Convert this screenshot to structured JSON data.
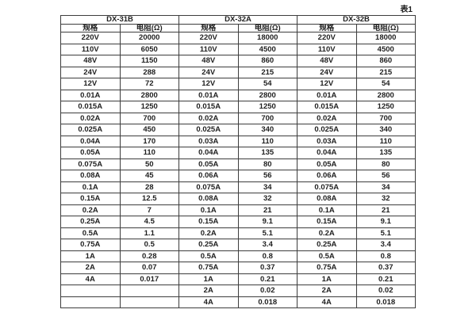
{
  "page": {
    "table_label": "表1"
  },
  "table": {
    "groups": [
      {
        "name": "DX-31B",
        "spec_header": "规格",
        "res_header": "电阻(Ω)"
      },
      {
        "name": "DX-32A",
        "spec_header": "规格",
        "res_header": "电阻(Ω)"
      },
      {
        "name": "DX-32B",
        "spec_header": "规格",
        "res_header": "电阻(Ω)"
      }
    ],
    "rows": [
      [
        "220V",
        "20000",
        "220V",
        "18000",
        "220V",
        "18000"
      ],
      [
        "110V",
        "6050",
        "110V",
        "4500",
        "110V",
        "4500"
      ],
      [
        "48V",
        "1150",
        "48V",
        "860",
        "48V",
        "860"
      ],
      [
        "24V",
        "288",
        "24V",
        "215",
        "24V",
        "215"
      ],
      [
        "12V",
        "72",
        "12V",
        "54",
        "12V",
        "54"
      ],
      [
        "0.01A",
        "2800",
        "0.01A",
        "2800",
        "0.01A",
        "2800"
      ],
      [
        "0.015A",
        "1250",
        "0.015A",
        "1250",
        "0.015A",
        "1250"
      ],
      [
        "0.02A",
        "700",
        "0.02A",
        "700",
        "0.02A",
        "700"
      ],
      [
        "0.025A",
        "450",
        "0.025A",
        "340",
        "0.025A",
        "340"
      ],
      [
        "0.04A",
        "170",
        "0.03A",
        "110",
        "0.03A",
        "110"
      ],
      [
        "0.05A",
        "110",
        "0.04A",
        "135",
        "0.04A",
        "135"
      ],
      [
        "0.075A",
        "50",
        "0.05A",
        "80",
        "0.05A",
        "80"
      ],
      [
        "0.08A",
        "45",
        "0.06A",
        "56",
        "0.06A",
        "56"
      ],
      [
        "0.1A",
        "28",
        "0.075A",
        "34",
        "0.075A",
        "34"
      ],
      [
        "0.15A",
        "12.5",
        "0.08A",
        "32",
        "0.08A",
        "32"
      ],
      [
        "0.2A",
        "7",
        "0.1A",
        "21",
        "0.1A",
        "21"
      ],
      [
        "0.25A",
        "4.5",
        "0.15A",
        "9.1",
        "0.15A",
        "9.1"
      ],
      [
        "0.5A",
        "1.1",
        "0.2A",
        "5.1",
        "0.2A",
        "5.1"
      ],
      [
        "0.75A",
        "0.5",
        "0.25A",
        "3.4",
        "0.25A",
        "3.4"
      ],
      [
        "1A",
        "0.28",
        "0.5A",
        "0.8",
        "0.5A",
        "0.8"
      ],
      [
        "2A",
        "0.07",
        "0.75A",
        "0.37",
        "0.75A",
        "0.37"
      ],
      [
        "4A",
        "0.017",
        "1A",
        "0.21",
        "1A",
        "0.21"
      ],
      [
        "",
        "",
        "2A",
        "0.02",
        "2A",
        "0.02"
      ],
      [
        "",
        "",
        "4A",
        "0.018",
        "4A",
        "0.018"
      ]
    ]
  },
  "colors": {
    "border": "#3d3d3d",
    "text": "#1f1f1f",
    "background": "#ffffff"
  }
}
